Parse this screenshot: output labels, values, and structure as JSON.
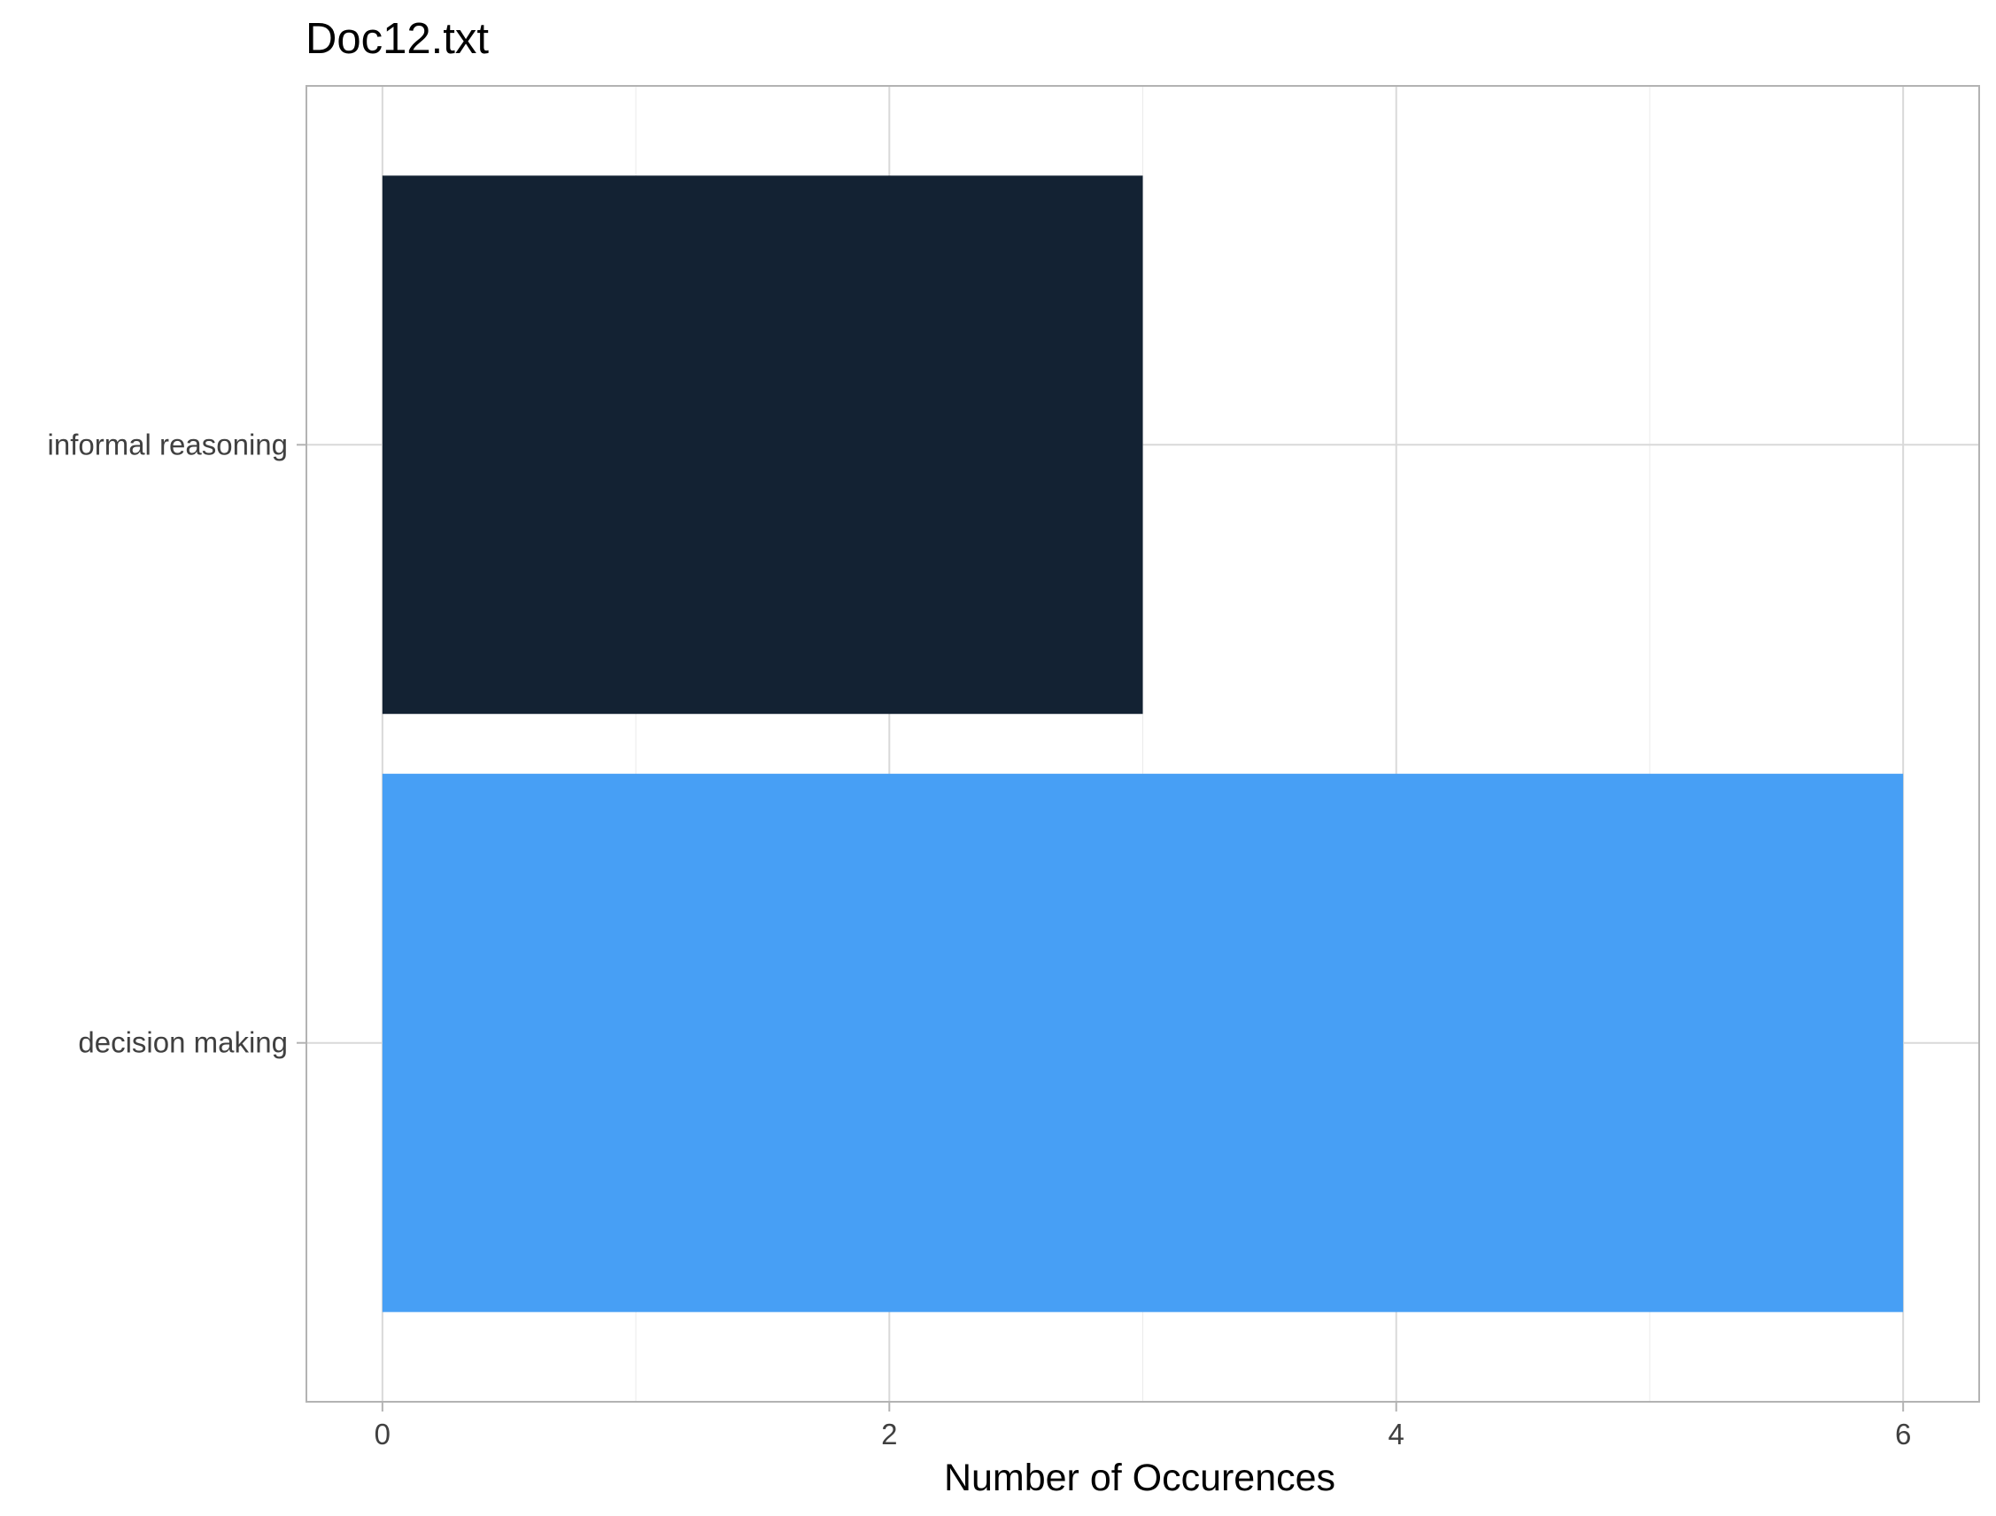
{
  "chart_data": {
    "type": "bar",
    "orientation": "horizontal",
    "title": "Doc12.txt",
    "xlabel": "Number of Occurences",
    "ylabel": "",
    "categories": [
      "decision making",
      "informal reasoning"
    ],
    "values": [
      6,
      3
    ],
    "colors": [
      "#479ff5",
      "#132233"
    ],
    "xlim": [
      -0.3,
      6.3
    ],
    "xticks": [
      0,
      2,
      4,
      6
    ],
    "grid": true,
    "legend": "none"
  }
}
